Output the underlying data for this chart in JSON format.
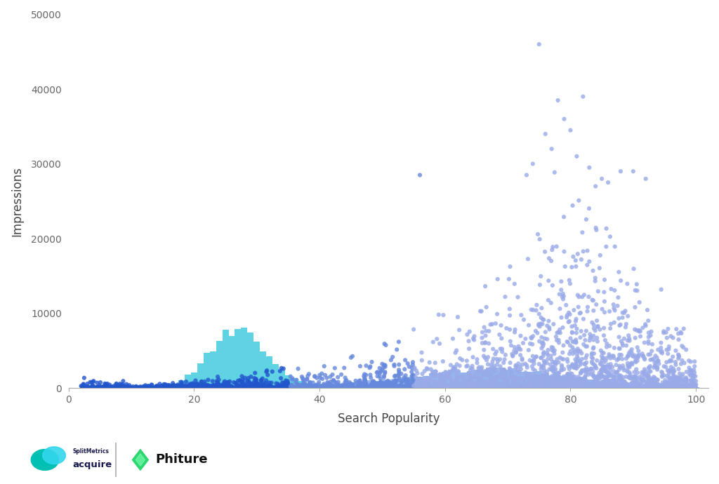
{
  "title": "",
  "xlabel": "Search Popularity",
  "ylabel": "Impressions",
  "xlim": [
    0,
    102
  ],
  "ylim": [
    0,
    50000
  ],
  "yticks": [
    0,
    10000,
    20000,
    30000,
    40000,
    50000
  ],
  "xticks": [
    0,
    20,
    40,
    60,
    80,
    100
  ],
  "bar_color_cyan": "#4dcde0",
  "bar_color_blue": "#8aadea",
  "scatter_color_dark": "#2255cc",
  "scatter_color_mid": "#6688dd",
  "scatter_color_light": "#99aae8",
  "background_color": "#ffffff",
  "seed": 7,
  "n_scatter": 3500
}
